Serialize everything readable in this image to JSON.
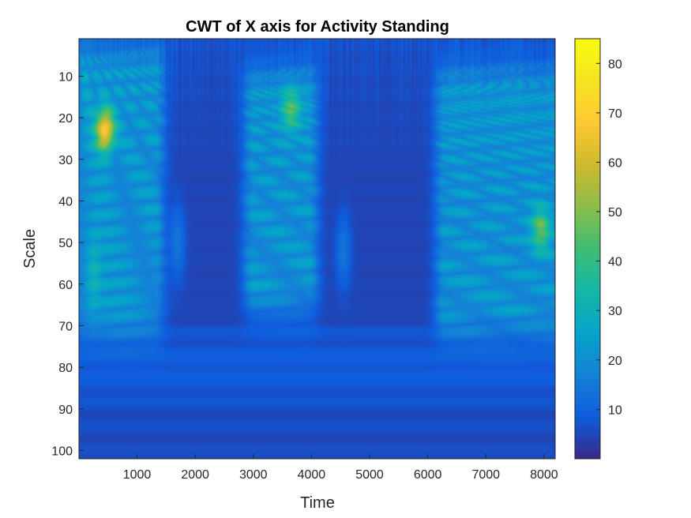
{
  "chart_data": {
    "type": "heatmap",
    "title": "CWT of X axis for Activity Standing",
    "xlabel": "Time",
    "ylabel": "Scale",
    "xlim": [
      1,
      8192
    ],
    "ylim": [
      1,
      102
    ],
    "x_ticks": [
      1000,
      2000,
      3000,
      4000,
      5000,
      6000,
      7000,
      8000
    ],
    "y_ticks": [
      10,
      20,
      30,
      40,
      50,
      60,
      70,
      80,
      90,
      100
    ],
    "y_direction": "reverse",
    "colorbar": {
      "colormap": "parula",
      "limits": [
        0,
        85
      ],
      "ticks": [
        10,
        20,
        30,
        40,
        50,
        60,
        70,
        80
      ]
    },
    "activity_bursts": [
      {
        "time_range": [
          1,
          1300
        ],
        "scale_range": [
          10,
          65
        ],
        "peak_time": 450,
        "peak_scale": 23,
        "peak_value": 75
      },
      {
        "time_range": [
          3000,
          3950
        ],
        "scale_range": [
          15,
          60
        ],
        "peak_time": 3650,
        "peak_scale": 18,
        "peak_value": 48
      },
      {
        "time_range": [
          6300,
          8192
        ],
        "scale_range": [
          15,
          65
        ],
        "peak_time": 7950,
        "peak_scale": 47,
        "peak_value": 52
      }
    ],
    "colors": {
      "low": "#352A87",
      "mid": "#0F5CDD",
      "high": "#F9FB0E"
    }
  }
}
